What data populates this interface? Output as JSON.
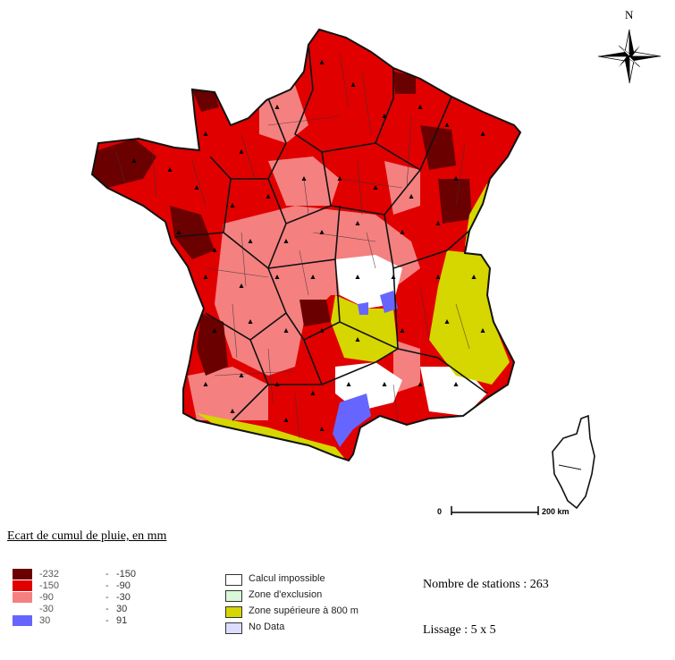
{
  "compass": {
    "label": "N",
    "icon": "compass-rose-icon"
  },
  "scale_bar": {
    "start_label": "0",
    "end_label": "200 km"
  },
  "legend": {
    "title": "Ecart de cumul de pluie, en mm",
    "classes": [
      {
        "from": "-232",
        "to": "-150",
        "color": "#6b0000"
      },
      {
        "from": "-150",
        "to": "-90",
        "color": "#e00000"
      },
      {
        "from": "-90",
        "to": "-30",
        "color": "#f58080"
      },
      {
        "from": "-30",
        "to": "30",
        "color": "#ffffff"
      },
      {
        "from": "30",
        "to": "91",
        "color": "#6666ff"
      }
    ],
    "categories": [
      {
        "label": "Calcul impossible",
        "color": "#ffffff"
      },
      {
        "label": "Zone d'exclusion",
        "color": "#d8f8d8"
      },
      {
        "label": "Zone supérieure à 800 m",
        "color": "#d6d600"
      },
      {
        "label": "No Data",
        "color": "#dcdcff"
      }
    ]
  },
  "stats": {
    "stations": "Nombre de stations : 263",
    "smoothing": "Lissage : 5 x 5"
  },
  "colors": {
    "dark_red": "#6b0000",
    "red": "#e00000",
    "pink": "#f58080",
    "white": "#ffffff",
    "blue": "#6666ff",
    "yellow": "#d6d600"
  }
}
